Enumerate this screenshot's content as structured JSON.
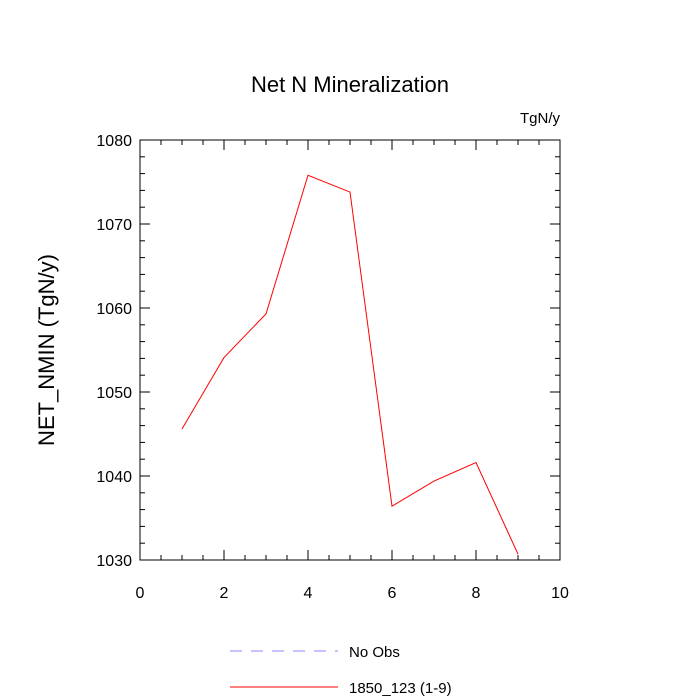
{
  "chart_data": {
    "type": "line",
    "title": "Net N Mineralization",
    "units": "TgN/y",
    "ylabel": "NET_NMIN  (TgN/y)",
    "xlabel": "",
    "xlim": [
      0,
      10
    ],
    "ylim": [
      1030,
      1080
    ],
    "x_ticks": [
      0,
      2,
      4,
      6,
      8,
      10
    ],
    "y_ticks": [
      1030,
      1040,
      1050,
      1060,
      1070,
      1080
    ],
    "grid": false,
    "series": [
      {
        "name": "1850_123 (1-9)",
        "color": "#ff0000",
        "dash": "solid",
        "x": [
          1,
          2,
          3,
          4,
          5,
          6,
          7,
          8,
          9
        ],
        "values": [
          1045.6,
          1054.1,
          1059.3,
          1075.8,
          1073.8,
          1036.4,
          1039.4,
          1041.6,
          1030.7
        ]
      }
    ],
    "legend": [
      {
        "label": "No Obs",
        "color": "#8888ff",
        "dash": "dashed"
      },
      {
        "label": "1850_123 (1-9)",
        "color": "#ff0000",
        "dash": "solid"
      }
    ],
    "legend_position": "bottom"
  }
}
